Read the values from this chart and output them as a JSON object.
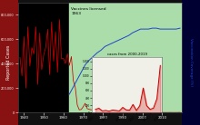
{
  "vaccine_label": "Vaccines licensed\n1963",
  "ylabel_left": "Reported Cases",
  "ylabel_right": "Vaccination Coverage (%)",
  "inset_title": "cases from 2000-2019",
  "main_color": "#cc0000",
  "coverage_color": "#2244cc",
  "inset_color": "#cc0000",
  "green_color": "#aaddaa",
  "fig_bg": "#111111",
  "left_bar_color": "#881111",
  "pre_vax_years": [
    1938,
    1939,
    1940,
    1941,
    1942,
    1943,
    1944,
    1945,
    1946,
    1947,
    1948,
    1949,
    1950,
    1951,
    1952,
    1953,
    1954,
    1955,
    1956,
    1957,
    1958,
    1959,
    1960,
    1961,
    1962
  ],
  "pre_vax_cases": [
    450000,
    300000,
    620000,
    200000,
    700000,
    380000,
    530000,
    480000,
    700000,
    230000,
    650000,
    350000,
    470000,
    530000,
    680000,
    310000,
    740000,
    420000,
    660000,
    330000,
    760000,
    440000,
    442000,
    400000,
    481000
  ],
  "post_vax_years": [
    1963,
    1964,
    1965,
    1966,
    1967,
    1968,
    1969,
    1970,
    1971,
    1972,
    1973,
    1974,
    1975,
    1976,
    1977,
    1978,
    1979,
    1980,
    1981,
    1982,
    1983,
    1984,
    1985,
    1986,
    1987,
    1988,
    1989,
    1990,
    1991,
    1992,
    1993,
    1994,
    1995,
    1996,
    1997,
    1998,
    1999,
    2000,
    2001,
    2002,
    2003,
    2004,
    2005,
    2006,
    2007,
    2008,
    2009,
    2010,
    2011,
    2012,
    2013,
    2014,
    2015,
    2016,
    2017,
    2018,
    2019
  ],
  "post_vax_cases": [
    385000,
    458000,
    261000,
    204000,
    62000,
    22000,
    25000,
    47000,
    75000,
    32000,
    26000,
    22000,
    24000,
    41000,
    57000,
    26000,
    13600,
    13500,
    3124,
    1714,
    1497,
    2587,
    2822,
    6282,
    3655,
    3411,
    18193,
    27786,
    9643,
    2237,
    312,
    963,
    309,
    508,
    138,
    100,
    100,
    86,
    116,
    44,
    56,
    37,
    66,
    55,
    43,
    140,
    71,
    63,
    220,
    55,
    187,
    667,
    188,
    86,
    120,
    375,
    1282
  ],
  "cov_years": [
    1963,
    1965,
    1967,
    1969,
    1971,
    1973,
    1975,
    1977,
    1979,
    1981,
    1983,
    1985,
    1987,
    1989,
    1991,
    1993,
    1995,
    1997,
    1999,
    2001,
    2003,
    2005,
    2007,
    2009,
    2011,
    2013,
    2015,
    2017,
    2019
  ],
  "cov_vals": [
    20,
    28,
    36,
    44,
    52,
    57,
    61,
    65,
    68,
    72,
    74,
    76,
    78,
    80,
    82,
    84,
    87,
    89,
    91,
    91,
    91,
    92,
    92,
    91,
    91,
    91,
    91,
    91,
    92
  ],
  "ylim_main": [
    0,
    900000
  ],
  "xlim_main": [
    1937,
    2020
  ],
  "inset_cases_years": [
    2000,
    2001,
    2002,
    2003,
    2004,
    2005,
    2006,
    2007,
    2008,
    2009,
    2010,
    2011,
    2012,
    2013,
    2014,
    2015,
    2016,
    2017,
    2018,
    2019
  ],
  "inset_cases": [
    86,
    116,
    44,
    56,
    37,
    66,
    55,
    43,
    140,
    71,
    63,
    220,
    55,
    187,
    667,
    188,
    86,
    120,
    375,
    1282
  ]
}
